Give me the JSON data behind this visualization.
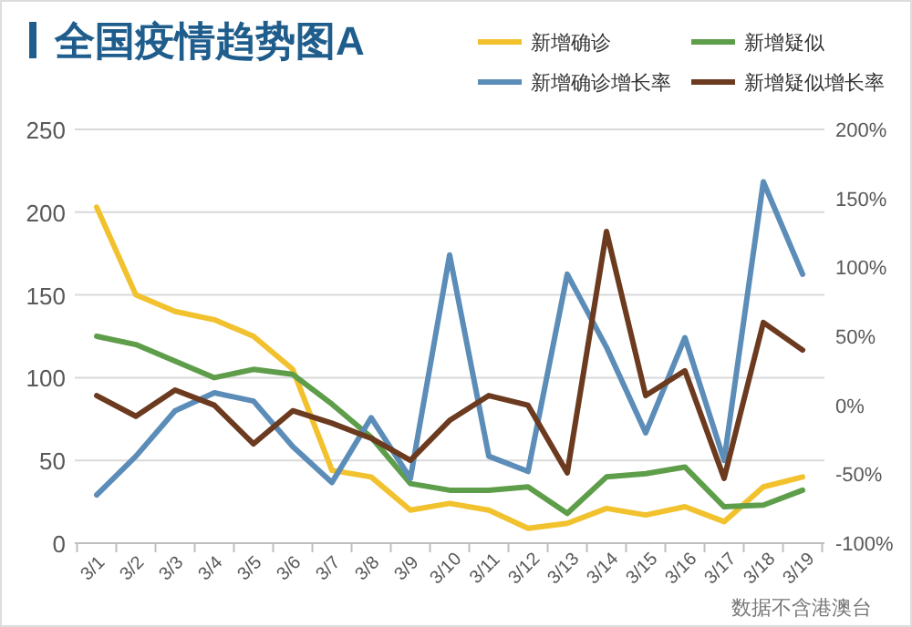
{
  "chart_data": {
    "type": "line",
    "title": "全国疫情趋势图A",
    "categories": [
      "3/1",
      "3/2",
      "3/3",
      "3/4",
      "3/5",
      "3/6",
      "3/7",
      "3/8",
      "3/9",
      "3/10",
      "3/11",
      "3/12",
      "3/13",
      "3/14",
      "3/15",
      "3/16",
      "3/17",
      "3/18",
      "3/19"
    ],
    "series": [
      {
        "name": "新增确诊",
        "color": "#f2c12e",
        "values": [
          203,
          150,
          140,
          135,
          125,
          105,
          44,
          40,
          20,
          24,
          20,
          9,
          12,
          21,
          17,
          22,
          13,
          34,
          40
        ]
      },
      {
        "name": "新增疑似",
        "color": "#5e9e4a",
        "values": [
          125,
          120,
          110,
          100,
          105,
          102,
          84,
          64,
          36,
          32,
          32,
          34,
          18,
          40,
          42,
          46,
          22,
          23,
          32
        ]
      },
      {
        "name": "新增确诊增长率",
        "color": "#5b8db8",
        "axis": "y2",
        "values": [
          -65,
          -37,
          -4,
          9,
          3,
          -30,
          -56,
          -9,
          -53,
          109,
          -37,
          -48,
          95,
          42,
          -20,
          49,
          -40,
          162,
          95
        ]
      },
      {
        "name": "新增疑似增长率",
        "color": "#6b3a1f",
        "axis": "y2",
        "values": [
          7,
          -8,
          11,
          0,
          -28,
          -4,
          -13,
          -24,
          -40,
          -11,
          7,
          0,
          -49,
          126,
          7,
          25,
          -53,
          60,
          40
        ]
      }
    ],
    "ylim": [
      0,
      250
    ],
    "yticks": [
      0,
      50,
      100,
      150,
      200,
      250
    ],
    "y2lim": [
      -100,
      200
    ],
    "y2ticks": [
      {
        "value": -100,
        "label": "-100%"
      },
      {
        "value": -50,
        "label": "-50%"
      },
      {
        "value": 0,
        "label": "0%"
      },
      {
        "value": 50,
        "label": "50%"
      },
      {
        "value": 100,
        "label": "100%"
      },
      {
        "value": 150,
        "label": "150%"
      },
      {
        "value": 200,
        "label": "200%"
      }
    ],
    "grid": "y",
    "legend": "top right",
    "marker": "none",
    "line_style": "solid",
    "annotations": [
      "数据不含港澳台"
    ]
  }
}
